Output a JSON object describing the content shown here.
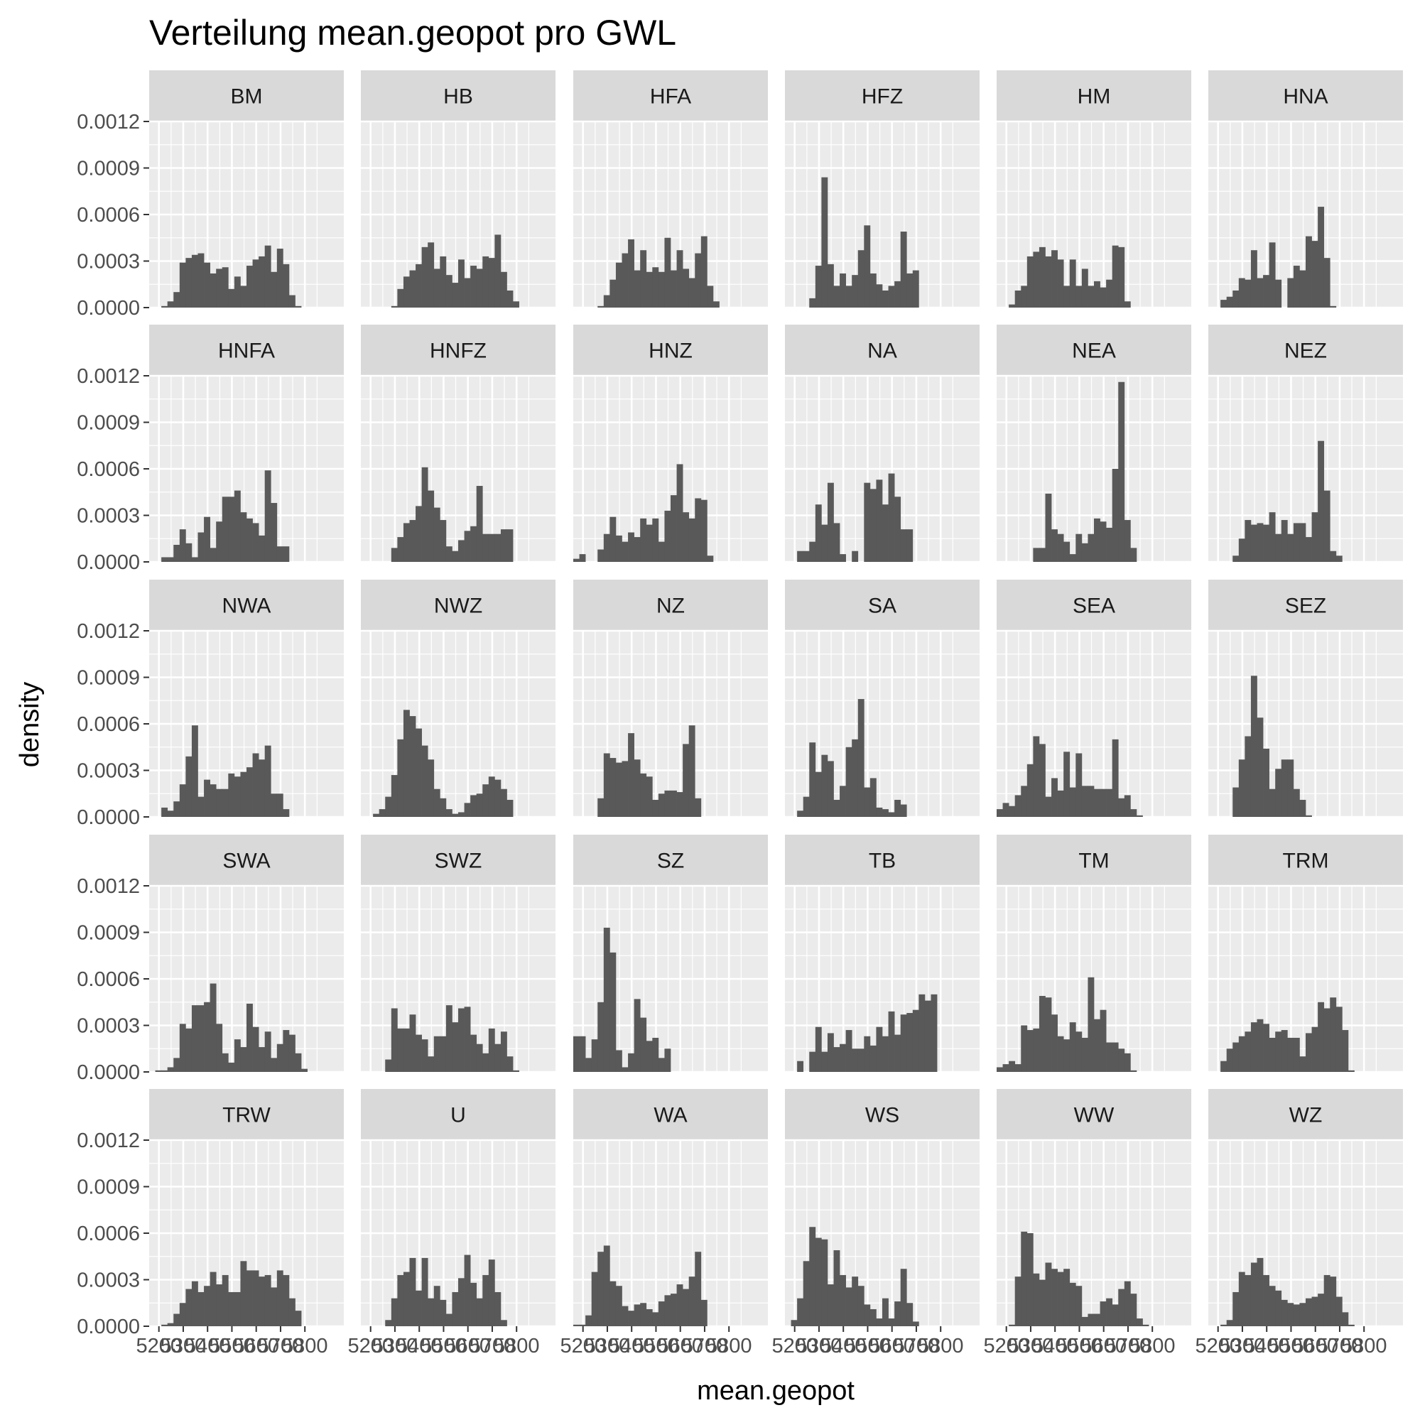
{
  "chart_data": {
    "type": "histogram-facets",
    "title": "Verteilung mean.geopot pro GWL",
    "xlabel": "mean.geopot",
    "ylabel": "density",
    "xlim": [
      5160,
      5960
    ],
    "ylim": [
      0,
      0.0012
    ],
    "grid": true,
    "bin_width": 25,
    "bin_start": 5160,
    "x_tick_labels": [
      "5200",
      "5300",
      "5400",
      "5500",
      "5600",
      "5700",
      "5800"
    ],
    "x_tick_values": [
      5200,
      5300,
      5400,
      5500,
      5600,
      5700,
      5800
    ],
    "y_tick_labels": [
      "0.0000",
      "0.0003",
      "0.0006",
      "0.0009",
      "0.0012"
    ],
    "y_tick_values": [
      0,
      0.0003,
      0.0006,
      0.0009,
      0.0012
    ],
    "colors": {
      "bar": "#595959",
      "panel": "#ebebeb",
      "strip": "#d9d9d9",
      "grid": "#ffffff"
    },
    "series": [
      {
        "name": "BM",
        "values": [
          0,
          0,
          1e-05,
          4e-05,
          0.0001,
          0.00029,
          0.00032,
          0.00034,
          0.00035,
          0.00029,
          0.00022,
          0.00025,
          0.00026,
          0.00012,
          0.0002,
          0.00014,
          0.00027,
          0.00031,
          0.00033,
          0.0004,
          0.00023,
          0.00038,
          0.00028,
          8e-05,
          1e-05,
          0,
          0,
          0,
          0,
          0,
          0,
          0
        ]
      },
      {
        "name": "HB",
        "values": [
          0,
          0,
          0,
          0,
          0,
          1e-05,
          0.00012,
          0.0002,
          0.00024,
          0.00028,
          0.00039,
          0.00042,
          0.00025,
          0.00033,
          0.00021,
          0.00016,
          0.00031,
          0.00019,
          0.00027,
          0.00025,
          0.00033,
          0.00032,
          0.00047,
          0.00023,
          0.00011,
          4e-05,
          0,
          0,
          0,
          0,
          0,
          0
        ]
      },
      {
        "name": "HFA",
        "values": [
          0,
          0,
          0,
          0,
          1e-05,
          8e-05,
          0.00018,
          0.00029,
          0.00035,
          0.00044,
          0.00024,
          0.00037,
          0.00023,
          0.00026,
          0.00023,
          0.00045,
          0.00024,
          0.00037,
          0.00025,
          0.00019,
          0.00035,
          0.00046,
          0.00014,
          4e-05,
          0,
          0,
          0,
          0,
          0,
          0,
          0,
          0
        ]
      },
      {
        "name": "HFZ",
        "values": [
          0,
          0,
          0,
          0,
          6e-05,
          0.00027,
          0.00084,
          0.00028,
          0.00014,
          0.00022,
          0.00014,
          0.00021,
          0.00037,
          0.00053,
          0.00022,
          0.00015,
          0.00011,
          0.00014,
          0.00017,
          0.00049,
          0.00022,
          0.00024,
          0,
          0,
          0,
          0,
          0,
          0,
          0,
          0,
          0,
          0
        ]
      },
      {
        "name": "HM",
        "values": [
          0,
          0,
          2e-05,
          0.00011,
          0.00014,
          0.00033,
          0.00036,
          0.00039,
          0.00033,
          0.00037,
          0.00031,
          0.00014,
          0.00031,
          0.00014,
          0.00025,
          0.00014,
          0.00017,
          0.00013,
          0.00018,
          0.0004,
          0.00039,
          4e-05,
          0,
          0,
          0,
          0,
          0,
          0,
          0,
          0,
          0,
          0
        ]
      },
      {
        "name": "HNA",
        "values": [
          0,
          0,
          5e-05,
          7e-05,
          0.00011,
          0.00019,
          0.00018,
          0.00037,
          0.00019,
          0.00021,
          0.00042,
          0.00018,
          0,
          0.00019,
          0.00027,
          0.00024,
          0.00046,
          0.00043,
          0.00065,
          0.00032,
          1e-05,
          0,
          0,
          0,
          0,
          0,
          0,
          0,
          0,
          0,
          0,
          0
        ]
      },
      {
        "name": "HNFA",
        "values": [
          0,
          0,
          3e-05,
          3e-05,
          0.00011,
          0.00021,
          0.00012,
          3e-05,
          0.00019,
          0.00029,
          9e-05,
          0.00026,
          0.00042,
          0.00042,
          0.00046,
          0.00032,
          0.00028,
          0.00025,
          0.00017,
          0.00059,
          0.00038,
          0.0001,
          0.0001,
          0,
          0,
          0,
          0,
          0,
          0,
          0,
          0,
          0
        ]
      },
      {
        "name": "HNFZ",
        "values": [
          0,
          0,
          0,
          0,
          0,
          9e-05,
          0.00016,
          0.00025,
          0.00027,
          0.00036,
          0.00061,
          0.00046,
          0.00035,
          0.00027,
          0.0001,
          7e-05,
          0.00014,
          0.0002,
          0.00023,
          0.00049,
          0.00018,
          0.00018,
          0.00018,
          0.00021,
          0.00021,
          0,
          0,
          0,
          0,
          0,
          0,
          0
        ]
      },
      {
        "name": "HNZ",
        "values": [
          2e-05,
          5e-05,
          0,
          0,
          8e-05,
          0.00018,
          0.00029,
          0.00017,
          0.00013,
          0.00019,
          0.00016,
          0.00028,
          0.00024,
          0.00028,
          0.00013,
          0.00033,
          0.00043,
          0.00063,
          0.00032,
          0.00028,
          0.00041,
          0.0004,
          4e-05,
          0,
          0,
          0,
          0,
          0,
          0,
          0,
          0,
          0
        ]
      },
      {
        "name": "NA",
        "values": [
          0,
          0,
          7e-05,
          7e-05,
          0.00013,
          0.00037,
          0.00024,
          0.00051,
          0.00025,
          5e-05,
          0,
          7e-05,
          0,
          0.00051,
          0.00047,
          0.00053,
          0.00037,
          0.00057,
          0.00042,
          0.00021,
          0.00021,
          0,
          0,
          0,
          0,
          0,
          0,
          0,
          0,
          0,
          0,
          0
        ]
      },
      {
        "name": "NEA",
        "values": [
          0,
          0,
          0,
          0,
          0,
          0,
          9e-05,
          9e-05,
          0.00044,
          0.00021,
          0.00018,
          0.00013,
          5e-05,
          0.00018,
          0.00012,
          0.00018,
          0.00028,
          0.00026,
          0.00022,
          0.0006,
          0.00116,
          0.00027,
          9e-05,
          0,
          0,
          0,
          0,
          0,
          0,
          0,
          0,
          0
        ]
      },
      {
        "name": "NEZ",
        "values": [
          0,
          0,
          0,
          0,
          4e-05,
          0.00015,
          0.00027,
          0.00024,
          0.00025,
          0.00024,
          0.00032,
          0.00018,
          0.00027,
          0.00018,
          0.00025,
          0.00025,
          0.00016,
          0.00032,
          0.00078,
          0.00046,
          7e-05,
          4e-05,
          0,
          0,
          0,
          0,
          0,
          0,
          0,
          0,
          0,
          0
        ]
      },
      {
        "name": "NWA",
        "values": [
          0,
          0,
          6e-05,
          4e-05,
          0.0001,
          0.00021,
          0.00039,
          0.00059,
          0.00013,
          0.00024,
          0.00021,
          0.00018,
          0.00018,
          0.00028,
          0.00026,
          0.00029,
          0.00032,
          0.00041,
          0.00037,
          0.00046,
          0.00015,
          0.00015,
          5e-05,
          0,
          0,
          0,
          0,
          0,
          0,
          0,
          0,
          0
        ]
      },
      {
        "name": "NWZ",
        "values": [
          0,
          0,
          2e-05,
          5e-05,
          0.00013,
          0.00027,
          0.0005,
          0.00069,
          0.00065,
          0.00057,
          0.00046,
          0.00037,
          0.00018,
          0.00012,
          5e-05,
          2e-05,
          3e-05,
          9e-05,
          0.00014,
          0.00015,
          0.00021,
          0.00026,
          0.00024,
          0.00018,
          0.00011,
          0,
          0,
          0,
          0,
          0,
          0,
          0
        ]
      },
      {
        "name": "NZ",
        "values": [
          0,
          0,
          0,
          0,
          0.00012,
          0.00041,
          0.00038,
          0.00035,
          0.00036,
          0.00054,
          0.00037,
          0.00028,
          0.00026,
          0.00011,
          0.00015,
          0.00017,
          0.00017,
          0.00016,
          0.00047,
          0.00059,
          0.00012,
          0,
          0,
          0,
          0,
          0,
          0,
          0,
          0,
          0,
          0,
          0
        ]
      },
      {
        "name": "SA",
        "values": [
          0,
          0,
          4e-05,
          0.00013,
          0.00048,
          0.00029,
          0.0004,
          0.00036,
          0.00011,
          0.0002,
          0.00045,
          0.0005,
          0.00076,
          0.00019,
          0.00025,
          6e-05,
          5e-05,
          3e-05,
          0.00011,
          8e-05,
          0,
          0,
          0,
          0,
          0,
          0,
          0,
          0,
          0,
          0,
          0,
          0
        ]
      },
      {
        "name": "SEA",
        "values": [
          5e-05,
          9e-05,
          7e-05,
          0.00014,
          0.0002,
          0.00034,
          0.00052,
          0.00047,
          0.00013,
          0.00025,
          0.00017,
          0.00042,
          0.00019,
          0.00041,
          0.0002,
          0.0002,
          0.00018,
          0.00018,
          0.00018,
          0.0005,
          0.00012,
          0.00014,
          5e-05,
          1e-05,
          0,
          0,
          0,
          0,
          0,
          0,
          0,
          0
        ]
      },
      {
        "name": "SEZ",
        "values": [
          0,
          0,
          0,
          0,
          0.00019,
          0.00037,
          0.00052,
          0.00091,
          0.00064,
          0.00044,
          0.00018,
          0.00031,
          0.00037,
          0.00037,
          0.00018,
          0.00011,
          1e-05,
          0,
          0,
          0,
          0,
          0,
          0,
          0,
          0,
          0,
          0,
          0,
          0,
          0,
          0,
          0
        ]
      },
      {
        "name": "SWA",
        "values": [
          0,
          1e-05,
          1e-05,
          3e-05,
          9e-05,
          0.00031,
          0.00028,
          0.00043,
          0.00043,
          0.00045,
          0.00057,
          0.00031,
          0.00012,
          6e-05,
          0.00021,
          0.00016,
          0.00044,
          0.00029,
          0.00016,
          0.00026,
          9e-05,
          0.00018,
          0.00027,
          0.00024,
          0.00012,
          2e-05,
          0,
          0,
          0,
          0,
          0,
          0
        ]
      },
      {
        "name": "SWZ",
        "values": [
          0,
          0,
          0,
          0,
          8e-05,
          0.00041,
          0.00028,
          0.00028,
          0.00037,
          0.00024,
          0.00021,
          0.0001,
          0.00023,
          0.00023,
          0.00043,
          0.00032,
          0.00041,
          0.00042,
          0.00024,
          0.00018,
          0.00012,
          0.00028,
          0.00018,
          0.00026,
          0.0001,
          1e-05,
          0,
          0,
          0,
          0,
          0,
          0
        ]
      },
      {
        "name": "SZ",
        "values": [
          0.00023,
          0.00023,
          9e-05,
          0.00021,
          0.00045,
          0.00093,
          0.00077,
          0.00014,
          3e-05,
          0.00012,
          0.00047,
          0.00035,
          0.0002,
          0.00022,
          9e-05,
          0.00015,
          0,
          0,
          0,
          0,
          0,
          0,
          0,
          0,
          0,
          0,
          0,
          0,
          0,
          0,
          0,
          0
        ]
      },
      {
        "name": "TB",
        "values": [
          0,
          0,
          7e-05,
          0,
          0.00013,
          0.00029,
          0.00013,
          0.00025,
          0.00016,
          0.00018,
          0.00027,
          0.00015,
          0.00015,
          0.00023,
          0.00017,
          0.00029,
          0.00023,
          0.00039,
          0.00024,
          0.00037,
          0.00038,
          0.0004,
          0.0005,
          0.00046,
          0.0005,
          0,
          0,
          0,
          0,
          0,
          0,
          0
        ]
      },
      {
        "name": "TM",
        "values": [
          3e-05,
          5e-05,
          7e-05,
          5e-05,
          0.0003,
          0.00027,
          0.00028,
          0.00049,
          0.00048,
          0.00037,
          0.00023,
          0.00021,
          0.00032,
          0.00026,
          0.00022,
          0.00061,
          0.00034,
          0.0004,
          0.00019,
          0.00019,
          0.00015,
          0.00012,
          1e-05,
          0,
          0,
          0,
          0,
          0,
          0,
          0,
          0,
          0
        ]
      },
      {
        "name": "TRM",
        "values": [
          0,
          0,
          7e-05,
          0.00015,
          0.00019,
          0.00023,
          0.00026,
          0.00032,
          0.00034,
          0.00031,
          0.00022,
          0.00026,
          0.00027,
          0.00022,
          0.00022,
          0.0001,
          0.00025,
          0.00029,
          0.00045,
          0.00041,
          0.00048,
          0.00042,
          0.00027,
          1e-05,
          0,
          0,
          0,
          0,
          0,
          0,
          0,
          0
        ]
      },
      {
        "name": "TRW",
        "values": [
          0,
          0,
          1e-05,
          2e-05,
          8e-05,
          0.00015,
          0.00024,
          0.00029,
          0.00022,
          0.00026,
          0.00035,
          0.00027,
          0.00033,
          0.00022,
          0.00022,
          0.00042,
          0.00036,
          0.00036,
          0.00032,
          0.00033,
          0.00025,
          0.00036,
          0.00033,
          0.00018,
          0.0001,
          0,
          0,
          0,
          0,
          0,
          0,
          0
        ]
      },
      {
        "name": "U",
        "values": [
          0,
          0,
          0,
          0,
          4e-05,
          0.00018,
          0.00033,
          0.00035,
          0.00044,
          0.00023,
          0.00044,
          0.00018,
          0.00026,
          0.00017,
          8e-05,
          0.00022,
          0.00031,
          0.00046,
          0.00028,
          0.00018,
          0.00033,
          0.00043,
          0.00022,
          4e-05,
          0,
          0,
          0,
          0,
          0,
          0,
          0,
          0
        ]
      },
      {
        "name": "WA",
        "values": [
          1e-05,
          1e-05,
          7e-05,
          0.00035,
          0.00048,
          0.00052,
          0.00029,
          0.00026,
          0.00013,
          0.0001,
          0.00014,
          0.00015,
          0.00011,
          9e-05,
          0.00016,
          0.0002,
          0.00021,
          0.00027,
          0.00024,
          0.00032,
          0.00048,
          0.00017,
          0,
          0,
          0,
          0,
          0,
          0,
          0,
          0,
          0,
          0
        ]
      },
      {
        "name": "WS",
        "values": [
          0,
          4e-05,
          0.00018,
          0.00042,
          0.00064,
          0.00057,
          0.00056,
          0.00027,
          0.00049,
          0.00033,
          0.00025,
          0.00032,
          0.00026,
          0.00014,
          0.00011,
          5e-05,
          0.00018,
          5e-05,
          0.00016,
          0.00037,
          0.00015,
          3e-05,
          0,
          0,
          0,
          0,
          0,
          0,
          0,
          0,
          0,
          0
        ]
      },
      {
        "name": "WW",
        "values": [
          0,
          0,
          1e-05,
          0.00032,
          0.00061,
          0.0006,
          0.00034,
          0.0003,
          0.00041,
          0.00037,
          0.00035,
          0.00037,
          0.00028,
          0.00026,
          6e-05,
          8e-05,
          8e-05,
          0.00016,
          0.00018,
          0.00014,
          0.00024,
          0.00029,
          0.00021,
          5e-05,
          1e-05,
          0,
          0,
          0,
          0,
          0,
          0,
          0
        ]
      },
      {
        "name": "WZ",
        "values": [
          0,
          0,
          1e-05,
          4e-05,
          0.00022,
          0.00035,
          0.00033,
          0.00041,
          0.00044,
          0.00033,
          0.00026,
          0.00023,
          0.00017,
          0.00015,
          0.00014,
          0.00015,
          0.00018,
          0.00019,
          0.00021,
          0.00033,
          0.00032,
          0.00019,
          9e-05,
          1e-05,
          0,
          0,
          0,
          0,
          0,
          0,
          0,
          0
        ]
      }
    ]
  }
}
